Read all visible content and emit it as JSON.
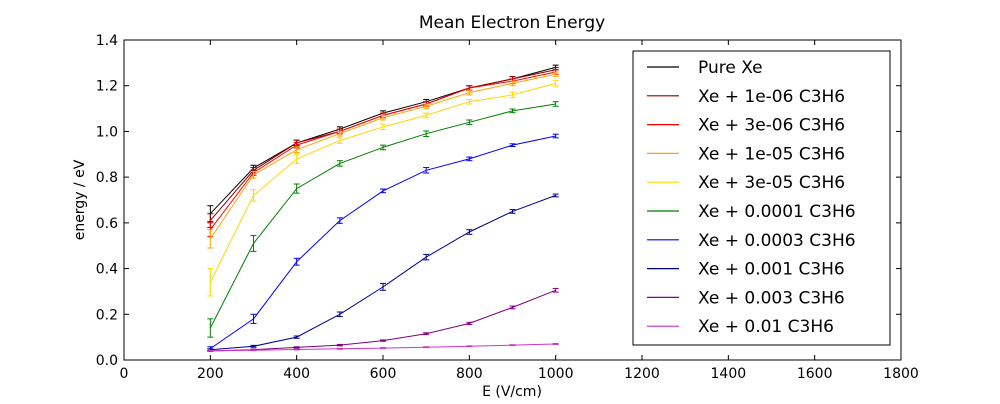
{
  "chart_data": {
    "type": "line",
    "title": "Mean Electron Energy",
    "xlabel": "E (V/cm)",
    "ylabel": "energy / eV",
    "xlim": [
      0,
      1800
    ],
    "ylim": [
      0.0,
      1.4
    ],
    "xticks": [
      0,
      200,
      400,
      600,
      800,
      1000,
      1200,
      1400,
      1600,
      1800
    ],
    "xtick_labels": [
      "0",
      "200",
      "400",
      "600",
      "800",
      "1000",
      "1200",
      "1400",
      "1600",
      "1800"
    ],
    "yticks": [
      0.0,
      0.2,
      0.4,
      0.6,
      0.8,
      1.0,
      1.2,
      1.4
    ],
    "ytick_labels": [
      "0.0",
      "0.2",
      "0.4",
      "0.6",
      "0.8",
      "1.0",
      "1.2",
      "1.4"
    ],
    "grid": false,
    "legend_position": "top-right",
    "x": [
      200,
      300,
      400,
      500,
      600,
      700,
      800,
      900,
      1000
    ],
    "series": [
      {
        "name": "Pure Xe",
        "color": "#000000",
        "values": [
          0.64,
          0.84,
          0.95,
          1.01,
          1.08,
          1.13,
          1.19,
          1.23,
          1.28
        ],
        "errors": [
          0.035,
          0.012,
          0.012,
          0.01,
          0.01,
          0.01,
          0.01,
          0.01,
          0.01
        ]
      },
      {
        "name": "Xe + 1e-06 C3H6",
        "color": "#8b0000",
        "values": [
          0.61,
          0.83,
          0.95,
          1.0,
          1.07,
          1.12,
          1.19,
          1.23,
          1.27
        ],
        "errors": [
          0.03,
          0.012,
          0.012,
          0.01,
          0.01,
          0.01,
          0.01,
          0.01,
          0.01
        ]
      },
      {
        "name": "Xe + 3e-06 C3H6",
        "color": "#ff0000",
        "values": [
          0.57,
          0.82,
          0.94,
          1.0,
          1.07,
          1.12,
          1.19,
          1.22,
          1.26
        ],
        "errors": [
          0.03,
          0.012,
          0.012,
          0.01,
          0.01,
          0.01,
          0.01,
          0.01,
          0.01
        ]
      },
      {
        "name": "Xe + 1e-05 C3H6",
        "color": "#ffa500",
        "values": [
          0.53,
          0.81,
          0.92,
          0.99,
          1.06,
          1.11,
          1.17,
          1.21,
          1.25
        ],
        "errors": [
          0.04,
          0.015,
          0.012,
          0.01,
          0.01,
          0.01,
          0.01,
          0.01,
          0.01
        ]
      },
      {
        "name": "Xe + 3e-05 C3H6",
        "color": "#ffd700",
        "values": [
          0.34,
          0.72,
          0.88,
          0.96,
          1.02,
          1.07,
          1.13,
          1.16,
          1.21
        ],
        "errors": [
          0.06,
          0.025,
          0.02,
          0.012,
          0.012,
          0.01,
          0.01,
          0.012,
          0.012
        ]
      },
      {
        "name": "Xe + 0.0001 C3H6",
        "color": "#008000",
        "values": [
          0.14,
          0.51,
          0.75,
          0.86,
          0.93,
          0.99,
          1.04,
          1.09,
          1.12
        ],
        "errors": [
          0.04,
          0.035,
          0.02,
          0.012,
          0.01,
          0.012,
          0.01,
          0.008,
          0.01
        ]
      },
      {
        "name": "Xe + 0.0003 C3H6",
        "color": "#0000ff",
        "values": [
          0.05,
          0.18,
          0.43,
          0.61,
          0.74,
          0.83,
          0.88,
          0.94,
          0.98
        ],
        "errors": [
          0.008,
          0.02,
          0.015,
          0.012,
          0.008,
          0.012,
          0.008,
          0.006,
          0.008
        ]
      },
      {
        "name": "Xe + 0.001 C3H6",
        "color": "#00008b",
        "values": [
          0.045,
          0.06,
          0.1,
          0.2,
          0.32,
          0.45,
          0.56,
          0.65,
          0.72
        ],
        "errors": [
          0.004,
          0.004,
          0.005,
          0.01,
          0.015,
          0.012,
          0.01,
          0.008,
          0.006
        ]
      },
      {
        "name": "Xe + 0.003 C3H6",
        "color": "#800080",
        "values": [
          0.04,
          0.045,
          0.055,
          0.065,
          0.085,
          0.115,
          0.16,
          0.23,
          0.305
        ],
        "errors": [
          0.003,
          0.003,
          0.003,
          0.003,
          0.003,
          0.004,
          0.005,
          0.006,
          0.008
        ]
      },
      {
        "name": "Xe + 0.01 C3H6",
        "color": "#cc33cc",
        "values": [
          0.04,
          0.043,
          0.046,
          0.049,
          0.052,
          0.056,
          0.06,
          0.065,
          0.07
        ],
        "errors": [
          0.002,
          0.002,
          0.002,
          0.002,
          0.002,
          0.002,
          0.002,
          0.002,
          0.002
        ]
      }
    ]
  }
}
